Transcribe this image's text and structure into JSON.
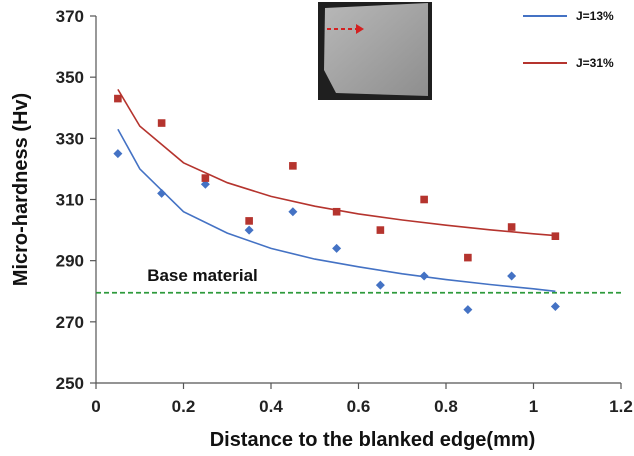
{
  "chart_data": {
    "type": "scatter",
    "title": "",
    "xlabel": "Distance to the blanked edge(mm)",
    "ylabel": "Micro-hardness (Hv)",
    "xlim": [
      0,
      1.2
    ],
    "ylim": [
      250,
      370
    ],
    "x_ticks": [
      0,
      0.2,
      0.4,
      0.6,
      0.8,
      1,
      1.2
    ],
    "x_tick_labels": [
      "0",
      "0.2",
      "0.4",
      "0.6",
      "0.8",
      "1",
      "1.2"
    ],
    "y_ticks": [
      250,
      270,
      290,
      310,
      330,
      350,
      370
    ],
    "y_tick_labels": [
      "250",
      "270",
      "290",
      "310",
      "330",
      "350",
      "370"
    ],
    "grid": false,
    "legend_position": "top-right",
    "series": [
      {
        "name": "J=13%",
        "color": "#4472C4",
        "marker": "diamond",
        "x": [
          0.05,
          0.15,
          0.25,
          0.35,
          0.45,
          0.55,
          0.65,
          0.75,
          0.85,
          0.95,
          1.05
        ],
        "y": [
          325,
          312,
          315,
          300,
          306,
          294,
          282,
          285,
          274,
          285,
          275
        ],
        "trendline": [
          [
            0.05,
            333
          ],
          [
            0.1,
            320
          ],
          [
            0.2,
            306
          ],
          [
            0.3,
            299
          ],
          [
            0.4,
            294
          ],
          [
            0.5,
            290.5
          ],
          [
            0.6,
            288
          ],
          [
            0.7,
            285.7
          ],
          [
            0.8,
            283.8
          ],
          [
            0.9,
            282.2
          ],
          [
            1.0,
            280.8
          ],
          [
            1.05,
            280
          ]
        ]
      },
      {
        "name": "J=31%",
        "color": "#B5342E",
        "marker": "square",
        "x": [
          0.05,
          0.15,
          0.25,
          0.35,
          0.45,
          0.55,
          0.65,
          0.75,
          0.85,
          0.95,
          1.05
        ],
        "y": [
          343,
          335,
          317,
          303,
          321,
          306,
          300,
          310,
          291,
          301,
          298
        ],
        "trendline": [
          [
            0.05,
            346
          ],
          [
            0.1,
            334
          ],
          [
            0.2,
            322
          ],
          [
            0.3,
            315.5
          ],
          [
            0.4,
            311
          ],
          [
            0.5,
            307.8
          ],
          [
            0.6,
            305.3
          ],
          [
            0.7,
            303.3
          ],
          [
            0.8,
            301.6
          ],
          [
            0.9,
            300.1
          ],
          [
            1.0,
            298.8
          ],
          [
            1.05,
            298.2
          ]
        ]
      }
    ],
    "reference_line": {
      "label": "Base material",
      "y": 279.5,
      "color": "#2E9A3C",
      "style": "dashed"
    },
    "inset_image": {
      "description": "micrograph of blanked edge cross-section",
      "arrow_color": "#D42020"
    }
  }
}
